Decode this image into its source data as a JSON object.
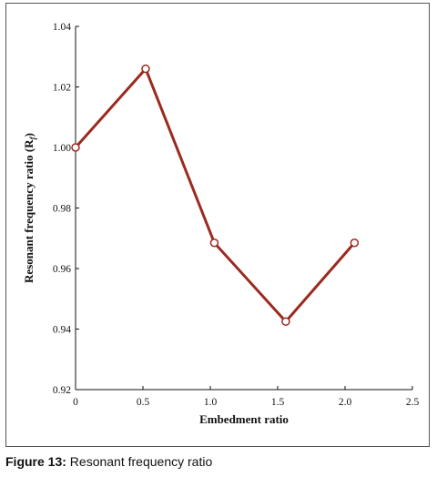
{
  "caption": {
    "label": "Figure 13:",
    "text": "Resonant frequency ratio"
  },
  "colors": {
    "series": "#9b2a1f",
    "axis": "#111111",
    "frame": "#555555",
    "marker_fill": "#ffffff"
  },
  "chart_data": {
    "type": "line",
    "title": "",
    "xlabel": "Embedment ratio",
    "ylabel": "Resonant frequency ratio (Rf)",
    "ylabel_main": "Resonant frequency ratio (R",
    "ylabel_sub": "f",
    "ylabel_end": ")",
    "xlim": [
      0,
      2.5
    ],
    "ylim": [
      0.92,
      1.04
    ],
    "x_ticks": [
      0,
      0.5,
      1.0,
      1.5,
      2.0,
      2.5
    ],
    "x_tick_labels": [
      "0",
      "0.5",
      "1.0",
      "1.5",
      "2.0",
      "2.5"
    ],
    "y_ticks": [
      0.92,
      0.94,
      0.96,
      0.98,
      1.0,
      1.02,
      1.04
    ],
    "y_tick_labels": [
      "0.92",
      "0.94",
      "0.96",
      "0.98",
      "1.00",
      "1.02",
      "1.04"
    ],
    "grid": false,
    "legend": "none",
    "series": [
      {
        "x": [
          0,
          0.52,
          1.03,
          1.56,
          2.07
        ],
        "y": [
          1.0,
          1.026,
          0.9685,
          0.9425,
          0.9685
        ]
      }
    ]
  }
}
